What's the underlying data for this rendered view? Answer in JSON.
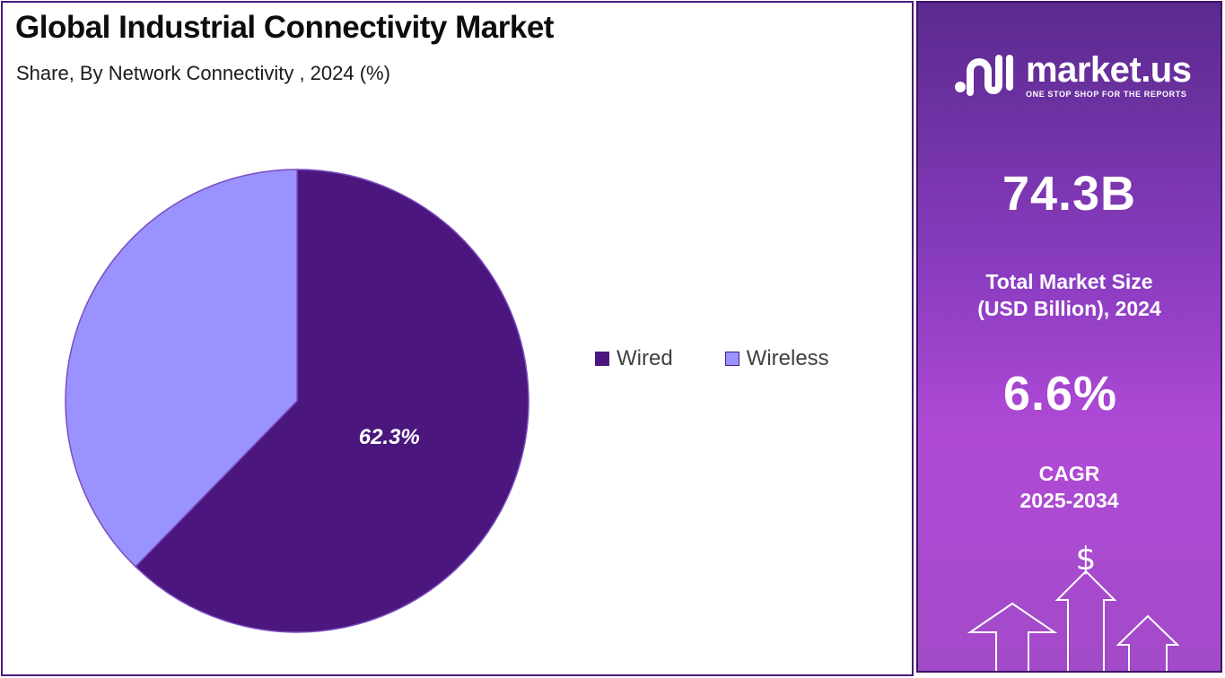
{
  "chart_data": {
    "type": "pie",
    "title": "Global Industrial Connectivity Market",
    "subtitle": "Share, By Network Connectivity , 2024 (%)",
    "categories": [
      "Wired",
      "Wireless"
    ],
    "values": [
      62.3,
      37.7
    ],
    "colors": [
      "#4b167d",
      "#9a92ff"
    ],
    "data_labels": [
      "62.3%",
      ""
    ],
    "legend_position": "right"
  },
  "brand": {
    "name": "market.us",
    "tagline": "ONE STOP SHOP FOR THE REPORTS"
  },
  "stats": {
    "market_size": "74.3B",
    "market_size_label_line1": "Total Market Size",
    "market_size_label_line2": "(USD Billion), 2024",
    "cagr": "6.6%",
    "cagr_label_line1": "CAGR",
    "cagr_label_line2": "2025-2034"
  },
  "icons": {
    "currency_symbol": "$"
  }
}
